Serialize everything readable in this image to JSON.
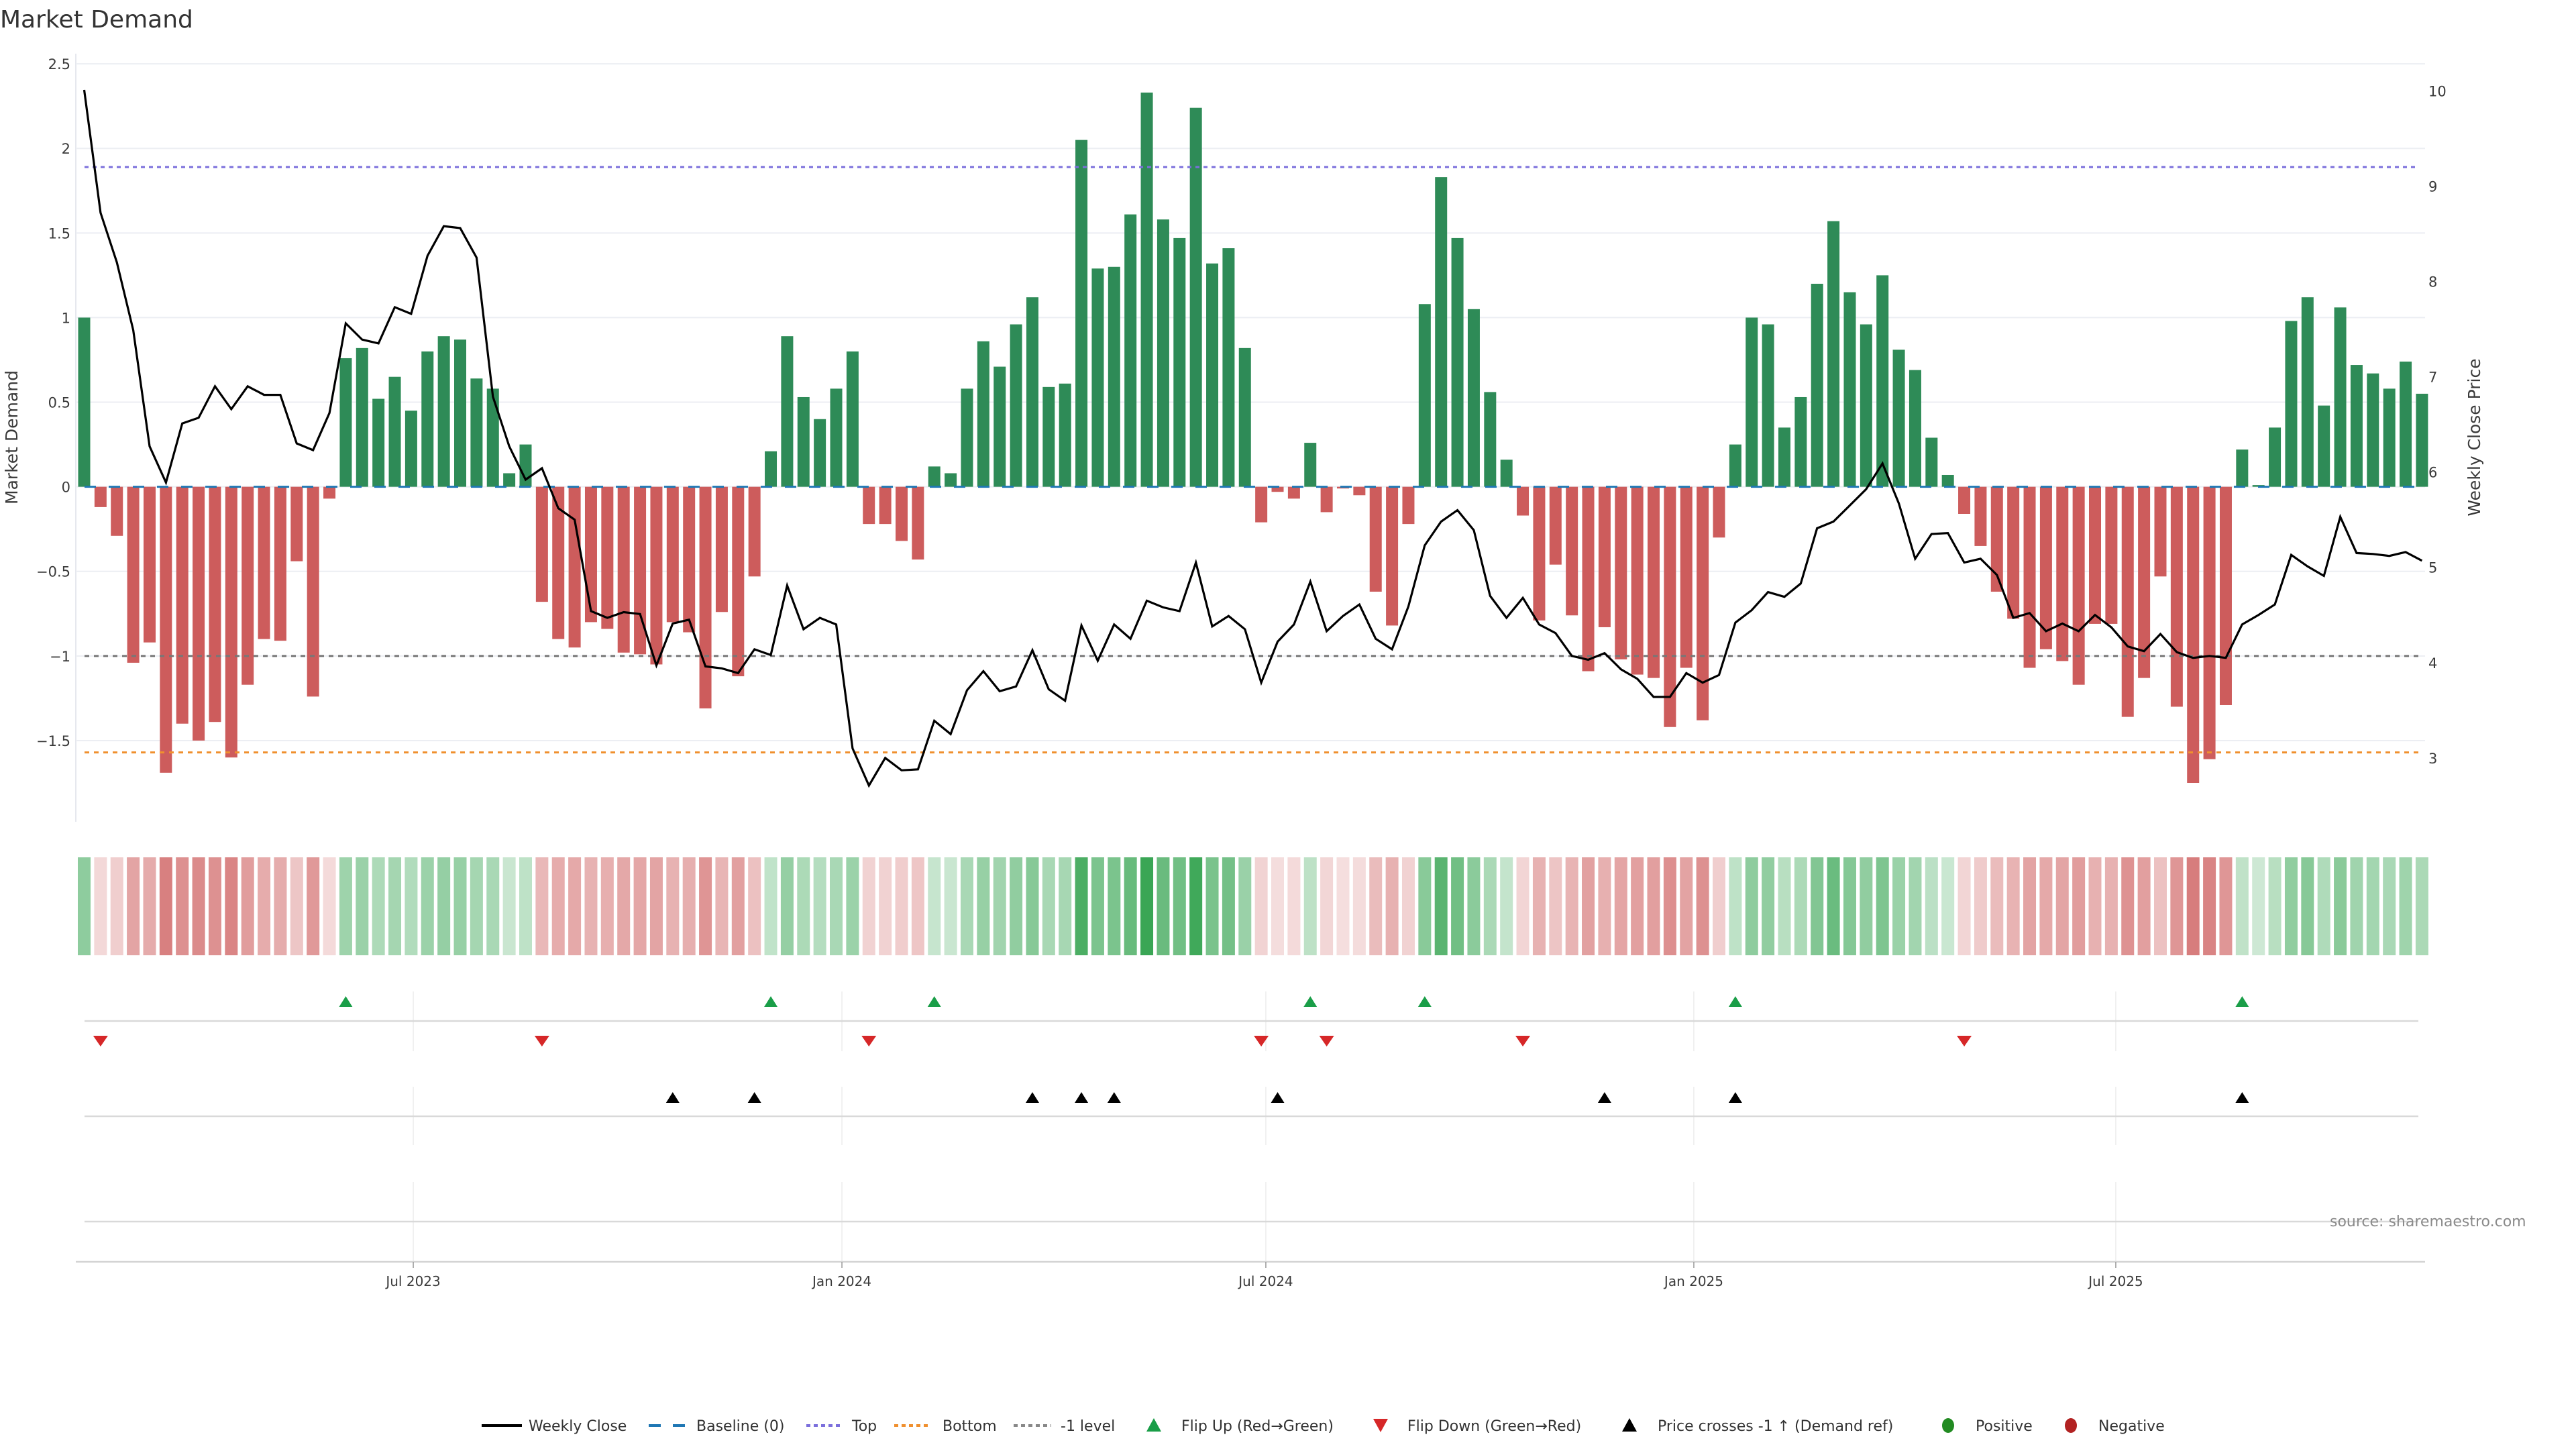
{
  "colors": {
    "bar_positive": "#2e8b57",
    "bar_negative": "#cd5c5c",
    "heat_positive": "#3aa655",
    "heat_negative": "#cd5c5c",
    "close_line": "#000000",
    "baseline": "#1f77b4",
    "top": "#7b6fdc",
    "bottom": "#f0902e",
    "minus1": "#777777",
    "flip_up": "#1a9e48",
    "flip_down": "#d62728",
    "price_cross": "#000000",
    "positive_dot": "#228b22",
    "negative_dot": "#b22222",
    "grid": "#eceef3",
    "panel_line": "#d9d9d9",
    "panel_vgrid": "#ececec",
    "axis_line": "#d4d4d4"
  },
  "source": "source: sharemaestro.com",
  "legend": [
    {
      "label": "Weekly Close",
      "icon": "solid-line-icon"
    },
    {
      "label": "Baseline (0)",
      "icon": "dashed-line-icon"
    },
    {
      "label": "Top",
      "icon": "dotted-line-icon"
    },
    {
      "label": "Bottom",
      "icon": "dotted-line-icon"
    },
    {
      "label": "-1 level",
      "icon": "dotted-line-icon"
    },
    {
      "label": "Flip Up (Red→Green)",
      "icon": "triangle-up-icon"
    },
    {
      "label": "Flip Down (Green→Red)",
      "icon": "triangle-down-icon"
    },
    {
      "label": "Price crosses -1 ↑ (Demand ref)",
      "icon": "triangle-up-icon"
    },
    {
      "label": "Positive",
      "icon": "circle-icon"
    },
    {
      "label": "Negative",
      "icon": "circle-icon"
    }
  ],
  "chart_data": {
    "type": "bar",
    "title": "Market Demand",
    "ylabel": "Market Demand",
    "y2label": "Weekly Close Price",
    "xlabel": "",
    "ylim": [
      -1.98,
      2.56
    ],
    "y2lim": [
      2.33,
      10.39
    ],
    "grid": true,
    "legend_position": "bottom-center",
    "y_ticks": [
      {
        "value": 2.5,
        "label": "2.5"
      },
      {
        "value": 2,
        "label": "2"
      },
      {
        "value": 1.5,
        "label": "1.5"
      },
      {
        "value": 1,
        "label": "1"
      },
      {
        "value": 0.5,
        "label": "0.5"
      },
      {
        "value": 0,
        "label": "0"
      },
      {
        "value": -0.5,
        "label": "−0.5"
      },
      {
        "value": -1,
        "label": "−1"
      },
      {
        "value": -1.5,
        "label": "−1.5"
      }
    ],
    "y2_ticks": [
      {
        "value": 10,
        "label": "10"
      },
      {
        "value": 9,
        "label": "9"
      },
      {
        "value": 8,
        "label": "8"
      },
      {
        "value": 7,
        "label": "7"
      },
      {
        "value": 6,
        "label": "6"
      },
      {
        "value": 5,
        "label": "5"
      },
      {
        "value": 4,
        "label": "4"
      },
      {
        "value": 3,
        "label": "3"
      }
    ],
    "x_unit": "week index (0 = first weekly bar)",
    "x_ticks": [
      {
        "week": 20.13,
        "label": "Jul 2023"
      },
      {
        "week": 46.35,
        "label": "Jan 2024"
      },
      {
        "week": 72.28,
        "label": "Jul 2024"
      },
      {
        "week": 98.46,
        "label": "Jan 2025"
      },
      {
        "week": 124.27,
        "label": "Jul 2025"
      }
    ],
    "reference_lines": [
      {
        "key": "top",
        "name": "Top",
        "value": 1.89,
        "axis": "left"
      },
      {
        "key": "bottom",
        "name": "Bottom",
        "value": -1.57,
        "axis": "left"
      },
      {
        "key": "minus1",
        "name": "-1 level",
        "value": -1,
        "axis": "left"
      },
      {
        "key": "baseline",
        "name": "Baseline (0)",
        "value": 0,
        "axis": "left"
      }
    ],
    "series": [
      {
        "name": "Market Demand",
        "type": "bar",
        "axis": "left",
        "values": [
          1.0,
          -0.12,
          -0.29,
          -1.04,
          -0.92,
          -1.69,
          -1.4,
          -1.5,
          -1.39,
          -1.6,
          -1.17,
          -0.9,
          -0.91,
          -0.44,
          -1.24,
          -0.07,
          0.76,
          0.82,
          0.52,
          0.65,
          0.45,
          0.8,
          0.89,
          0.87,
          0.64,
          0.58,
          0.08,
          0.25,
          -0.68,
          -0.9,
          -0.95,
          -0.8,
          -0.84,
          -0.98,
          -0.99,
          -1.05,
          -0.8,
          -0.86,
          -1.31,
          -0.74,
          -1.12,
          -0.53,
          0.21,
          0.89,
          0.53,
          0.4,
          0.58,
          0.8,
          -0.22,
          -0.22,
          -0.32,
          -0.43,
          0.12,
          0.08,
          0.58,
          0.86,
          0.71,
          0.96,
          1.12,
          0.59,
          0.61,
          2.05,
          1.29,
          1.3,
          1.61,
          2.33,
          1.58,
          1.47,
          2.24,
          1.32,
          1.41,
          0.82,
          -0.21,
          -0.03,
          -0.07,
          0.26,
          -0.15,
          -0.01,
          -0.05,
          -0.62,
          -0.82,
          -0.22,
          1.08,
          1.83,
          1.47,
          1.05,
          0.56,
          0.16,
          -0.17,
          -0.79,
          -0.46,
          -0.76,
          -1.09,
          -0.83,
          -1.02,
          -1.11,
          -1.13,
          -1.42,
          -1.07,
          -1.38,
          -0.3,
          0.25,
          1.0,
          0.96,
          0.35,
          0.53,
          1.2,
          1.57,
          1.15,
          0.96,
          1.25,
          0.81,
          0.69,
          0.29,
          0.07,
          -0.16,
          -0.35,
          -0.62,
          -0.78,
          -1.07,
          -0.96,
          -1.03,
          -1.17,
          -0.81,
          -0.81,
          -1.36,
          -1.13,
          -0.53,
          -1.3,
          -1.75,
          -1.61,
          -1.29,
          0.22,
          0.01,
          0.35,
          0.98,
          1.12,
          0.48,
          1.06,
          0.72,
          0.67,
          0.58,
          0.74,
          0.55
        ]
      },
      {
        "name": "Weekly Close",
        "type": "line",
        "axis": "right",
        "values": [
          10.01,
          8.72,
          8.2,
          7.49,
          6.27,
          5.89,
          6.51,
          6.57,
          6.9,
          6.66,
          6.9,
          6.81,
          6.81,
          6.3,
          6.23,
          6.62,
          7.56,
          7.39,
          7.35,
          7.73,
          7.66,
          8.27,
          8.58,
          8.56,
          8.25,
          6.79,
          6.27,
          5.92,
          6.04,
          5.62,
          5.5,
          4.54,
          4.47,
          4.53,
          4.51,
          3.97,
          4.41,
          4.45,
          3.96,
          3.94,
          3.89,
          4.14,
          4.08,
          4.81,
          4.35,
          4.47,
          4.4,
          3.1,
          2.71,
          3.0,
          2.87,
          2.88,
          3.39,
          3.25,
          3.71,
          3.91,
          3.7,
          3.75,
          4.13,
          3.72,
          3.6,
          4.39,
          4.02,
          4.4,
          4.25,
          4.65,
          4.58,
          4.54,
          5.05,
          4.38,
          4.49,
          4.35,
          3.79,
          4.22,
          4.4,
          4.85,
          4.33,
          4.49,
          4.61,
          4.25,
          4.14,
          4.59,
          5.23,
          5.48,
          5.6,
          5.39,
          4.7,
          4.47,
          4.68,
          4.4,
          4.31,
          4.07,
          4.03,
          4.1,
          3.93,
          3.83,
          3.64,
          3.64,
          3.89,
          3.79,
          3.87,
          4.42,
          4.55,
          4.74,
          4.69,
          4.83,
          5.41,
          5.48,
          5.65,
          5.82,
          6.09,
          5.67,
          5.09,
          5.35,
          5.36,
          5.05,
          5.09,
          4.92,
          4.47,
          4.52,
          4.33,
          4.41,
          4.33,
          4.5,
          4.37,
          4.17,
          4.12,
          4.3,
          4.11,
          4.05,
          4.07,
          4.05,
          4.4,
          4.5,
          4.61,
          5.13,
          5.01,
          4.91,
          5.53,
          5.15,
          5.14,
          5.12,
          5.16,
          5.07
        ]
      }
    ],
    "heat_strip": "intensity of Market Demand per week (green = positive, red = negative)",
    "events": {
      "flip_up": [
        16,
        42,
        52,
        75,
        82,
        101,
        132
      ],
      "flip_down": [
        1,
        28,
        48,
        72,
        76,
        88,
        115
      ],
      "price_cross": [
        36,
        41,
        58,
        61,
        63,
        73,
        93,
        101,
        132
      ]
    }
  }
}
